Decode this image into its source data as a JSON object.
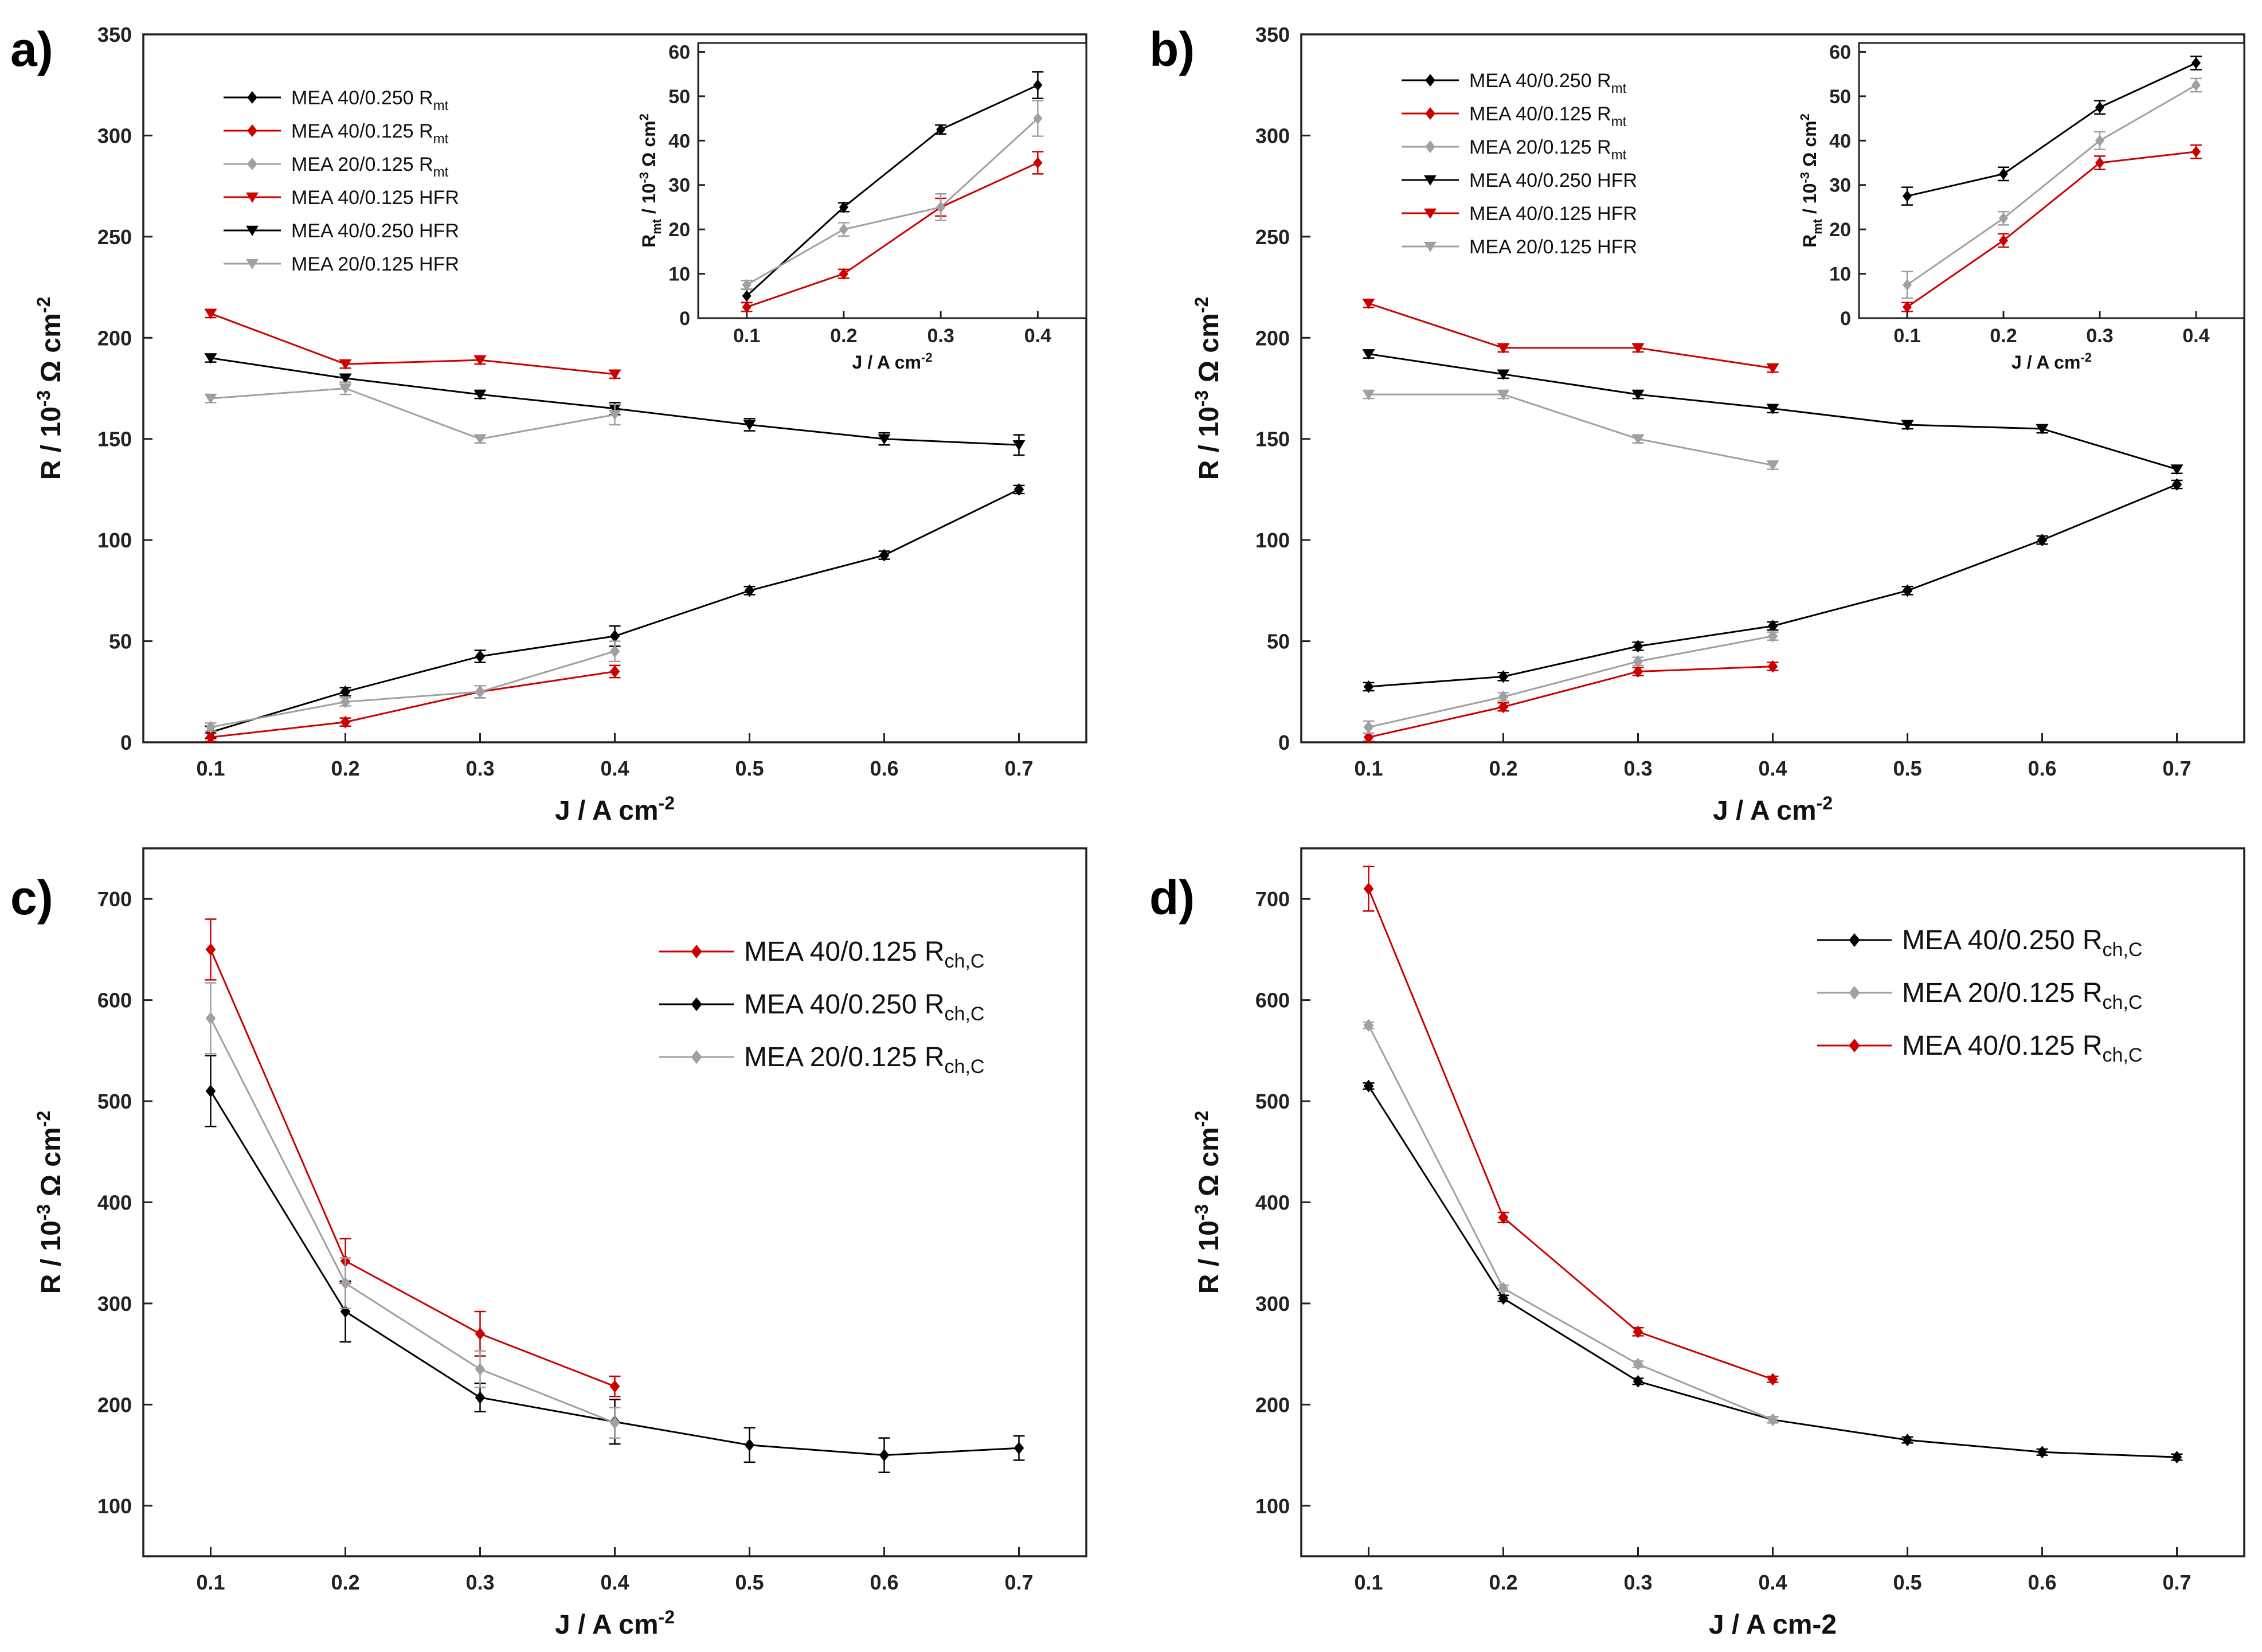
{
  "chart_data": [
    {
      "id": "a",
      "type": "line",
      "panel_label": "a)",
      "xlabel": "J / A cm",
      "xlabel_sup": "-2",
      "ylabel": "R / 10",
      "ylabel_sup": "-3",
      "ylabel_mid": " Ω cm",
      "ylabel_sup2": "-2",
      "xlim": [
        0.05,
        0.75
      ],
      "ylim": [
        0,
        350
      ],
      "xticks": [
        "0.1",
        "0.2",
        "0.3",
        "0.4",
        "0.5",
        "0.6",
        "0.7"
      ],
      "yticks": [
        "0",
        "50",
        "100",
        "150",
        "200",
        "250",
        "300",
        "350"
      ],
      "legend_position": "top-left",
      "series": [
        {
          "name": "MEA 40/0.250 R",
          "sub": "mt",
          "color": "#000000",
          "marker": "diamond",
          "x": [
            0.1,
            0.2,
            0.3,
            0.4,
            0.5,
            0.6,
            0.7
          ],
          "y": [
            5,
            25,
            42.5,
            52.5,
            75,
            92.5,
            125
          ],
          "err": [
            3,
            2,
            3,
            5,
            2,
            2,
            2
          ]
        },
        {
          "name": "MEA 40/0.125 R",
          "sub": "mt",
          "color": "#cc0000",
          "marker": "diamond",
          "x": [
            0.1,
            0.2,
            0.3,
            0.4
          ],
          "y": [
            2.5,
            10,
            25,
            35
          ],
          "err": [
            2,
            2,
            3,
            3
          ]
        },
        {
          "name": "MEA 20/0.125 R",
          "sub": "mt",
          "color": "#a0a0a0",
          "marker": "diamond",
          "x": [
            0.1,
            0.2,
            0.3,
            0.4
          ],
          "y": [
            7.5,
            20,
            25,
            45
          ],
          "err": [
            2,
            2,
            3,
            5
          ]
        },
        {
          "name": "MEA 40/0.125 HFR",
          "sub": "",
          "color": "#cc0000",
          "marker": "triangle-down",
          "x": [
            0.1,
            0.2,
            0.3,
            0.4
          ],
          "y": [
            212,
            187,
            189,
            182
          ],
          "err": [
            2,
            2,
            2,
            2
          ]
        },
        {
          "name": "MEA 40/0.250 HFR",
          "sub": "",
          "color": "#000000",
          "marker": "triangle-down",
          "x": [
            0.1,
            0.2,
            0.3,
            0.4,
            0.5,
            0.6,
            0.7
          ],
          "y": [
            190,
            180,
            172,
            165,
            157,
            150,
            147
          ],
          "err": [
            2,
            2,
            2,
            3,
            3,
            3,
            5
          ]
        },
        {
          "name": "MEA 20/0.125 HFR",
          "sub": "",
          "color": "#a0a0a0",
          "marker": "triangle-down",
          "x": [
            0.1,
            0.2,
            0.3,
            0.4
          ],
          "y": [
            170,
            175,
            150,
            162
          ],
          "err": [
            2,
            3,
            2,
            5
          ]
        }
      ],
      "inset": {
        "xlabel": "J / A cm",
        "xlabel_sup": "-2",
        "ylabel": "R",
        "ylabel_sub": "mt",
        "ylabel_rest": " / 10",
        "ylabel_sup": "-3",
        "ylabel_mid": " Ω cm",
        "ylabel_sup2": "2",
        "xlim": [
          0.05,
          0.45
        ],
        "ylim": [
          0,
          62
        ],
        "xticks": [
          "0.1",
          "0.2",
          "0.3",
          "0.4"
        ],
        "yticks": [
          "0",
          "10",
          "20",
          "30",
          "40",
          "50",
          "60"
        ],
        "series": [
          {
            "color": "#000000",
            "x": [
              0.1,
              0.2,
              0.3,
              0.4
            ],
            "y": [
              5,
              25,
              42.5,
              52.5
            ],
            "err": [
              1.5,
              1,
              1,
              3
            ]
          },
          {
            "color": "#cc0000",
            "x": [
              0.1,
              0.2,
              0.3,
              0.4
            ],
            "y": [
              2.5,
              10,
              25,
              35
            ],
            "err": [
              1,
              1,
              2,
              2.5
            ]
          },
          {
            "color": "#a0a0a0",
            "x": [
              0.1,
              0.2,
              0.3,
              0.4
            ],
            "y": [
              7.5,
              20,
              25,
              45
            ],
            "err": [
              1,
              1.5,
              3,
              4
            ]
          }
        ]
      }
    },
    {
      "id": "b",
      "type": "line",
      "panel_label": "b)",
      "xlabel": "J / A cm",
      "xlabel_sup": "-2",
      "ylabel": "R / 10",
      "ylabel_sup": "-3",
      "ylabel_mid": " Ω cm",
      "ylabel_sup2": "-2",
      "xlim": [
        0.05,
        0.75
      ],
      "ylim": [
        0,
        350
      ],
      "xticks": [
        "0.1",
        "0.2",
        "0.3",
        "0.4",
        "0.5",
        "0.6",
        "0.7"
      ],
      "yticks": [
        "0",
        "50",
        "100",
        "150",
        "200",
        "250",
        "300",
        "350"
      ],
      "legend_position": "top-left",
      "series": [
        {
          "name": "MEA 40/0.250 R",
          "sub": "mt",
          "color": "#000000",
          "marker": "diamond",
          "x": [
            0.1,
            0.2,
            0.3,
            0.4,
            0.5,
            0.6,
            0.7
          ],
          "y": [
            27.5,
            32.5,
            47.5,
            57.5,
            75,
            100,
            127.5
          ],
          "err": [
            2,
            2,
            2,
            2,
            2,
            2,
            2
          ]
        },
        {
          "name": "MEA 40/0.125 R",
          "sub": "mt",
          "color": "#cc0000",
          "marker": "diamond",
          "x": [
            0.1,
            0.2,
            0.3,
            0.4
          ],
          "y": [
            2.5,
            17.5,
            35,
            37.5
          ],
          "err": [
            2,
            2,
            2,
            2
          ]
        },
        {
          "name": "MEA 20/0.125 R",
          "sub": "mt",
          "color": "#a0a0a0",
          "marker": "diamond",
          "x": [
            0.1,
            0.2,
            0.3,
            0.4
          ],
          "y": [
            7.5,
            22.5,
            40,
            52.5
          ],
          "err": [
            3,
            2,
            2,
            2
          ]
        },
        {
          "name": "MEA 40/0.250 HFR",
          "sub": "",
          "color": "#000000",
          "marker": "triangle-down",
          "x": [
            0.1,
            0.2,
            0.3,
            0.4,
            0.5,
            0.6,
            0.7
          ],
          "y": [
            192,
            182,
            172,
            165,
            157,
            155,
            135
          ],
          "err": [
            2,
            2,
            2,
            2,
            2,
            2,
            2
          ]
        },
        {
          "name": "MEA 40/0.125 HFR",
          "sub": "",
          "color": "#cc0000",
          "marker": "triangle-down",
          "x": [
            0.1,
            0.2,
            0.3,
            0.4
          ],
          "y": [
            217,
            195,
            195,
            185
          ],
          "err": [
            2,
            2,
            2,
            2
          ]
        },
        {
          "name": "MEA 20/0.125 HFR",
          "sub": "",
          "color": "#a0a0a0",
          "marker": "triangle-down",
          "x": [
            0.1,
            0.2,
            0.3,
            0.4
          ],
          "y": [
            172,
            172,
            150,
            137
          ],
          "err": [
            2,
            2,
            2,
            2
          ]
        }
      ],
      "inset": {
        "xlabel": "J / A cm",
        "xlabel_sup": "-2",
        "ylabel": "R",
        "ylabel_sub": "mt",
        "ylabel_rest": " / 10",
        "ylabel_sup": "-3",
        "ylabel_mid": " Ω cm",
        "ylabel_sup2": "2",
        "xlim": [
          0.05,
          0.45
        ],
        "ylim": [
          0,
          62
        ],
        "xticks": [
          "0.1",
          "0.2",
          "0.3",
          "0.4"
        ],
        "yticks": [
          "0",
          "10",
          "20",
          "30",
          "40",
          "50",
          "60"
        ],
        "series": [
          {
            "color": "#000000",
            "x": [
              0.1,
              0.2,
              0.3,
              0.4
            ],
            "y": [
              27.5,
              32.5,
              47.5,
              57.5
            ],
            "err": [
              2,
              1.5,
              1.5,
              1.5
            ]
          },
          {
            "color": "#cc0000",
            "x": [
              0.1,
              0.2,
              0.3,
              0.4
            ],
            "y": [
              2.5,
              17.5,
              35,
              37.5
            ],
            "err": [
              1,
              1.5,
              1.5,
              1.5
            ]
          },
          {
            "color": "#a0a0a0",
            "x": [
              0.1,
              0.2,
              0.3,
              0.4
            ],
            "y": [
              7.5,
              22.5,
              40,
              52.5
            ],
            "err": [
              3,
              1.5,
              2,
              1.5
            ]
          }
        ]
      }
    },
    {
      "id": "c",
      "type": "line",
      "panel_label": "c)",
      "xlabel": "J / A cm",
      "xlabel_sup": "-2",
      "ylabel": "R / 10",
      "ylabel_sup": "-3",
      "ylabel_mid": " Ω cm",
      "ylabel_sup2": "-2",
      "xlim": [
        0.05,
        0.75
      ],
      "ylim": [
        50,
        750
      ],
      "xticks": [
        "0.1",
        "0.2",
        "0.3",
        "0.4",
        "0.5",
        "0.6",
        "0.7"
      ],
      "yticks": [
        "100",
        "200",
        "300",
        "400",
        "500",
        "600",
        "700"
      ],
      "legend_position": "top-right",
      "series": [
        {
          "name": "MEA 40/0.125 R",
          "sub": "ch,C",
          "color": "#cc0000",
          "marker": "diamond",
          "x": [
            0.1,
            0.2,
            0.3,
            0.4
          ],
          "y": [
            650,
            342,
            270,
            218
          ],
          "err": [
            30,
            22,
            22,
            10
          ]
        },
        {
          "name": "MEA 40/0.250 R",
          "sub": "ch,C",
          "color": "#000000",
          "marker": "diamond",
          "x": [
            0.1,
            0.2,
            0.3,
            0.4,
            0.5,
            0.6,
            0.7
          ],
          "y": [
            510,
            292,
            207,
            183,
            160,
            150,
            157
          ],
          "err": [
            35,
            30,
            14,
            22,
            17,
            17,
            12
          ]
        },
        {
          "name": "MEA 20/0.125 R",
          "sub": "ch,C",
          "color": "#a0a0a0",
          "marker": "diamond",
          "x": [
            0.1,
            0.2,
            0.3,
            0.4
          ],
          "y": [
            582,
            320,
            235,
            182
          ],
          "err": [
            35,
            25,
            18,
            15
          ]
        }
      ]
    },
    {
      "id": "d",
      "type": "line",
      "panel_label": "d)",
      "xlabel": "J / A cm-2",
      "xlabel_sup": "",
      "ylabel": "R / 10",
      "ylabel_sup": "-3",
      "ylabel_mid": " Ω cm",
      "ylabel_sup2": "-2",
      "xlim": [
        0.05,
        0.75
      ],
      "ylim": [
        50,
        750
      ],
      "xticks": [
        "0.1",
        "0.2",
        "0.3",
        "0.4",
        "0.5",
        "0.6",
        "0.7"
      ],
      "yticks": [
        "100",
        "200",
        "300",
        "400",
        "500",
        "600",
        "700"
      ],
      "legend_position": "top-right",
      "series": [
        {
          "name": "MEA 40/0.250 R",
          "sub": "ch,C",
          "color": "#000000",
          "marker": "diamond",
          "x": [
            0.1,
            0.2,
            0.3,
            0.4,
            0.5,
            0.6,
            0.7
          ],
          "y": [
            515,
            305,
            223,
            185,
            165,
            153,
            148
          ],
          "err": [
            3,
            3,
            3,
            3,
            3,
            3,
            3
          ]
        },
        {
          "name": "MEA 20/0.125 R",
          "sub": "ch,C",
          "color": "#a0a0a0",
          "marker": "diamond",
          "x": [
            0.1,
            0.2,
            0.3,
            0.4
          ],
          "y": [
            575,
            315,
            240,
            185
          ],
          "err": [
            3,
            3,
            3,
            3
          ]
        },
        {
          "name": "MEA 40/0.125 R",
          "sub": "ch,C",
          "color": "#cc0000",
          "marker": "diamond",
          "x": [
            0.1,
            0.2,
            0.3,
            0.4
          ],
          "y": [
            710,
            385,
            272,
            225
          ],
          "err": [
            22,
            5,
            4,
            3
          ]
        }
      ]
    }
  ]
}
